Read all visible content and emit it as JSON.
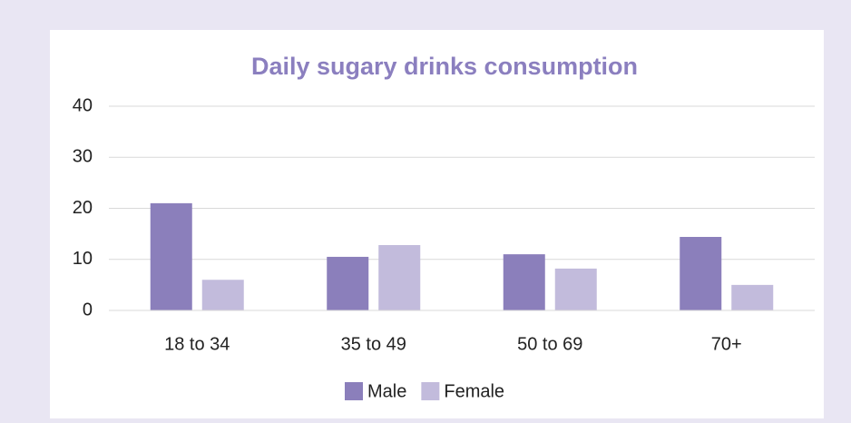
{
  "chart_data": {
    "type": "bar",
    "title": "Daily sugary drinks consumption",
    "categories": [
      "18 to 34",
      "35 to 49",
      "50 to 69",
      "70+"
    ],
    "series": [
      {
        "name": "Male",
        "color": "#8b7fbb",
        "values": [
          21,
          10.5,
          11,
          14.4
        ]
      },
      {
        "name": "Female",
        "color": "#c2bbdc",
        "values": [
          6,
          12.8,
          8.2,
          5
        ]
      }
    ],
    "ylim": [
      0,
      40
    ],
    "yticks": [
      0,
      10,
      20,
      30,
      40
    ],
    "grid": true,
    "legend": "bottom"
  }
}
